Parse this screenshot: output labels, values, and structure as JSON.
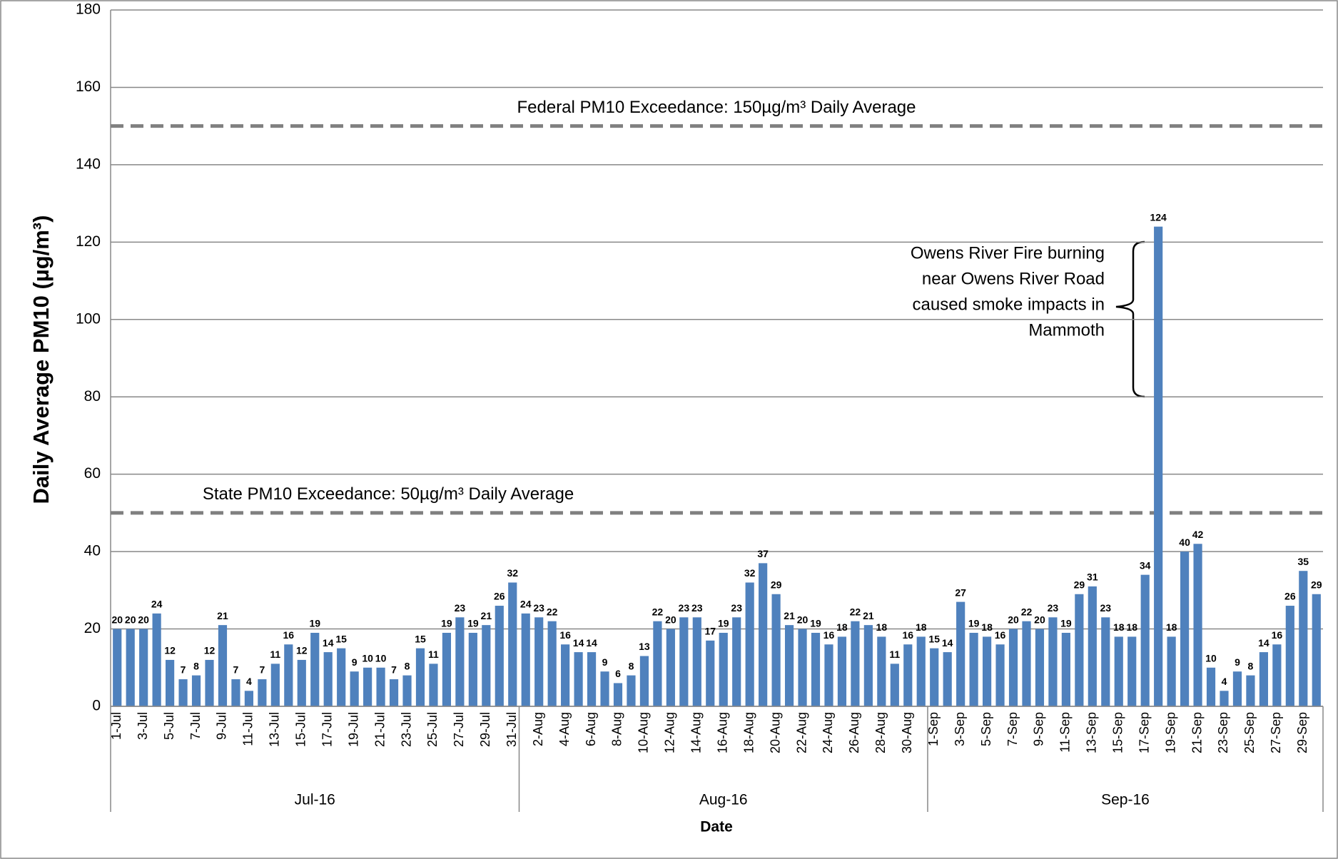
{
  "chart_data": {
    "type": "bar",
    "y_label": "Daily Average PM10 (µg/m³)",
    "x_label": "Date",
    "color": "#4f81bd",
    "ylim": [
      0,
      180
    ],
    "yticks": [
      0,
      20,
      40,
      60,
      80,
      100,
      120,
      140,
      160,
      180
    ],
    "grid": true,
    "groups": [
      {
        "label": "Jul-16",
        "categories": [
          "1-Jul",
          null,
          "3-Jul",
          null,
          "5-Jul",
          null,
          "7-Jul",
          null,
          "9-Jul",
          null,
          "11-Jul",
          null,
          "13-Jul",
          null,
          "15-Jul",
          null,
          "17-Jul",
          null,
          "19-Jul",
          null,
          "21-Jul",
          null,
          "23-Jul",
          null,
          "25-Jul",
          null,
          "27-Jul",
          null,
          "29-Jul",
          null,
          "31-Jul"
        ]
      },
      {
        "label": "Aug-16",
        "categories": [
          null,
          "2-Aug",
          null,
          "4-Aug",
          null,
          "6-Aug",
          null,
          "8-Aug",
          null,
          "10-Aug",
          null,
          "12-Aug",
          null,
          "14-Aug",
          null,
          "16-Aug",
          null,
          "18-Aug",
          null,
          "20-Aug",
          null,
          "22-Aug",
          null,
          "24-Aug",
          null,
          "26-Aug",
          null,
          "28-Aug",
          null,
          "30-Aug",
          null
        ]
      },
      {
        "label": "Sep-16",
        "categories": [
          "1-Sep",
          null,
          "3-Sep",
          null,
          "5-Sep",
          null,
          "7-Sep",
          null,
          "9-Sep",
          null,
          "11-Sep",
          null,
          "13-Sep",
          null,
          "15-Sep",
          null,
          "17-Sep",
          null,
          "19-Sep",
          null,
          "21-Sep",
          null,
          "23-Sep",
          null,
          "25-Sep",
          null,
          "27-Sep",
          null,
          "29-Sep",
          null
        ]
      }
    ],
    "values": [
      20,
      20,
      20,
      24,
      12,
      7,
      8,
      12,
      21,
      7,
      4,
      7,
      11,
      16,
      12,
      19,
      14,
      15,
      9,
      10,
      10,
      7,
      8,
      15,
      11,
      19,
      23,
      19,
      21,
      26,
      32,
      24,
      23,
      22,
      16,
      14,
      14,
      9,
      6,
      8,
      13,
      22,
      20,
      23,
      23,
      17,
      19,
      23,
      32,
      37,
      29,
      21,
      20,
      19,
      16,
      18,
      22,
      21,
      18,
      11,
      16,
      18,
      15,
      14,
      27,
      19,
      18,
      16,
      20,
      22,
      20,
      23,
      19,
      29,
      31,
      23,
      18,
      18,
      34,
      124,
      18,
      40,
      42,
      10,
      4,
      9,
      8,
      14,
      16,
      26,
      35,
      29
    ],
    "reference_lines": [
      {
        "value": 150,
        "label": "Federal PM10 Exceedance: 150µg/m³ Daily Average"
      },
      {
        "value": 50,
        "label": "State PM10 Exceedance: 50µg/m³ Daily Average"
      }
    ],
    "annotation": [
      "Owens River Fire burning",
      "near Owens River Road",
      "caused smoke impacts in",
      "Mammoth"
    ]
  }
}
